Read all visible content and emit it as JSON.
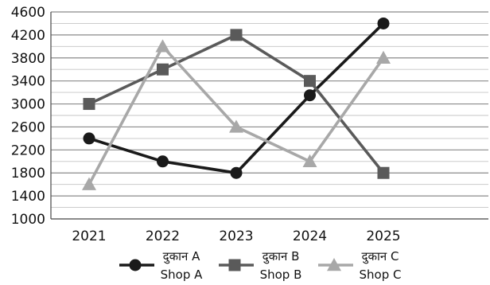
{
  "chart_data": {
    "type": "line",
    "categories": [
      "2021",
      "2022",
      "2023",
      "2024",
      "2025"
    ],
    "ylim": [
      1000,
      4600
    ],
    "yticks": [
      1000,
      1400,
      1800,
      2200,
      2600,
      3000,
      3400,
      3800,
      4200,
      4600
    ],
    "grid": true,
    "legend_position": "bottom",
    "series": [
      {
        "name_hi": "दुकान A",
        "name": "Shop A",
        "marker": "circle",
        "color": "#1a1a1a",
        "values": [
          2400,
          2000,
          1800,
          3150,
          4400
        ]
      },
      {
        "name_hi": "दुकान B",
        "name": "Shop B",
        "marker": "square",
        "color": "#5a5a5a",
        "values": [
          3000,
          3600,
          4200,
          3400,
          1800
        ]
      },
      {
        "name_hi": "दुकान C",
        "name": "Shop C",
        "marker": "triangle",
        "color": "#a8a8a8",
        "values": [
          1600,
          4000,
          2600,
          2000,
          3800
        ]
      }
    ]
  }
}
